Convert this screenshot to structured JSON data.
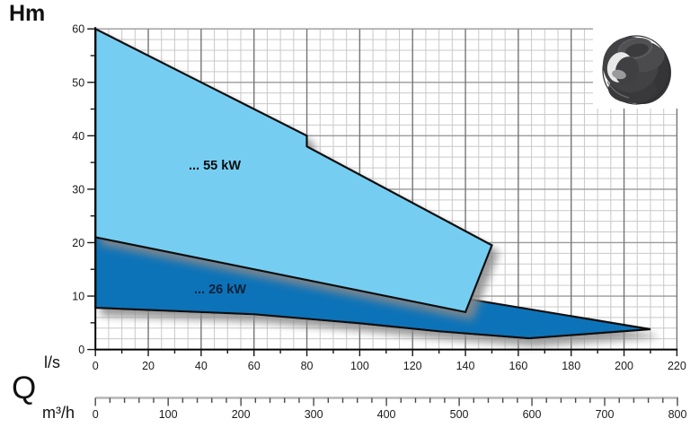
{
  "labels": {
    "hm": "Hm",
    "q": "Q",
    "ls": "l/s",
    "m3h": "m³/h"
  },
  "product_image": {
    "name": "impeller-photo"
  },
  "chart_data": {
    "type": "area",
    "title": "",
    "grid": true,
    "y_axis": {
      "label": "Hm",
      "min": 0,
      "max": 60,
      "major_step": 10,
      "minor_grid_step": 2,
      "minor_tick_step": 5,
      "tick_labels": [
        0,
        10,
        20,
        30,
        40,
        50,
        60
      ]
    },
    "x_axis_ls": {
      "label": "l/s",
      "min": 0,
      "max": 220,
      "major_step": 20,
      "minor_grid_step": 5,
      "minor_tick_step": 10,
      "tick_labels": [
        0,
        20,
        40,
        60,
        80,
        100,
        120,
        140,
        160,
        180,
        200,
        220
      ]
    },
    "x_axis_m3h": {
      "label": "m³/h",
      "min": 0,
      "max": 800,
      "major_step": 100,
      "minor_tick_step": 20,
      "tick_labels": [
        0,
        100,
        200,
        300,
        400,
        500,
        600,
        700,
        800
      ]
    },
    "regions": [
      {
        "name": "26kw",
        "label": "... 26 kW",
        "color": "#1173b8",
        "label_color": "#0b2038",
        "points_ls_hm": [
          [
            0,
            21
          ],
          [
            210,
            3.8
          ],
          [
            164,
            2.1
          ],
          [
            130,
            3.4
          ],
          [
            100,
            4.9
          ],
          [
            60,
            6.6
          ],
          [
            0,
            7.8
          ]
        ]
      },
      {
        "name": "55kw",
        "label": "... 55 kW",
        "color": "#74cef2",
        "label_color": "#0c0c0d",
        "points_ls_hm": [
          [
            0,
            60
          ],
          [
            80,
            40
          ],
          [
            80,
            38
          ],
          [
            150,
            19.5
          ],
          [
            140,
            7
          ],
          [
            0,
            21
          ]
        ]
      }
    ]
  }
}
